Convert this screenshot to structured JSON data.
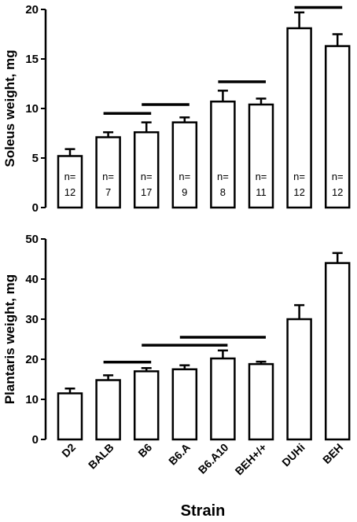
{
  "chart_data": [
    {
      "type": "bar",
      "categories": [
        "D2",
        "BALB",
        "B6",
        "B6.A",
        "B6.A10",
        "BEH+/+",
        "DUHi",
        "BEH"
      ],
      "ylabel": "Soleus weight, mg",
      "ylim": [
        0,
        20
      ],
      "yticks": [
        "0",
        "5",
        "10",
        "15",
        "20"
      ],
      "values": [
        5.2,
        7.1,
        7.6,
        8.6,
        10.7,
        10.4,
        18.1,
        16.3
      ],
      "errors": [
        0.7,
        0.5,
        1.0,
        0.5,
        1.1,
        0.6,
        1.6,
        1.2
      ],
      "n_labels": [
        {
          "prefix": "n=",
          "value": "12"
        },
        {
          "prefix": "n=",
          "value": "7"
        },
        {
          "prefix": "n=",
          "value": "17"
        },
        {
          "prefix": "n=",
          "value": "9"
        },
        {
          "prefix": "n=",
          "value": "8"
        },
        {
          "prefix": "n=",
          "value": "11"
        },
        {
          "prefix": "n=",
          "value": "12"
        },
        {
          "prefix": "n=",
          "value": "12"
        }
      ],
      "significance_lines": [
        {
          "from": "BALB",
          "to": "B6",
          "y": 9.5
        },
        {
          "from": "B6",
          "to": "B6.A",
          "y": 10.4
        },
        {
          "from": "B6.A10",
          "to": "BEH+/+",
          "y": 12.7
        },
        {
          "from": "DUHi",
          "to": "BEH",
          "y": 20.2
        }
      ]
    },
    {
      "type": "bar",
      "categories": [
        "D2",
        "BALB",
        "B6",
        "B6.A",
        "B6.A10",
        "BEH+/+",
        "DUHi",
        "BEH"
      ],
      "ylabel": "Plantaris weight, mg",
      "xlabel": "Strain",
      "ylim": [
        0,
        50
      ],
      "yticks": [
        "0",
        "10",
        "20",
        "30",
        "40",
        "50"
      ],
      "values": [
        11.5,
        14.8,
        17.0,
        17.5,
        20.2,
        18.8,
        30.0,
        44.0
      ],
      "errors": [
        1.2,
        1.2,
        0.8,
        1.0,
        2.0,
        0.6,
        3.5,
        2.5
      ],
      "significance_lines": [
        {
          "from": "BALB",
          "to": "B6",
          "y": 19.3
        },
        {
          "from": "B6",
          "to": "B6.A10",
          "y": 23.5
        },
        {
          "from": "B6.A",
          "to": "BEH+/+",
          "y": 25.5
        }
      ]
    }
  ]
}
